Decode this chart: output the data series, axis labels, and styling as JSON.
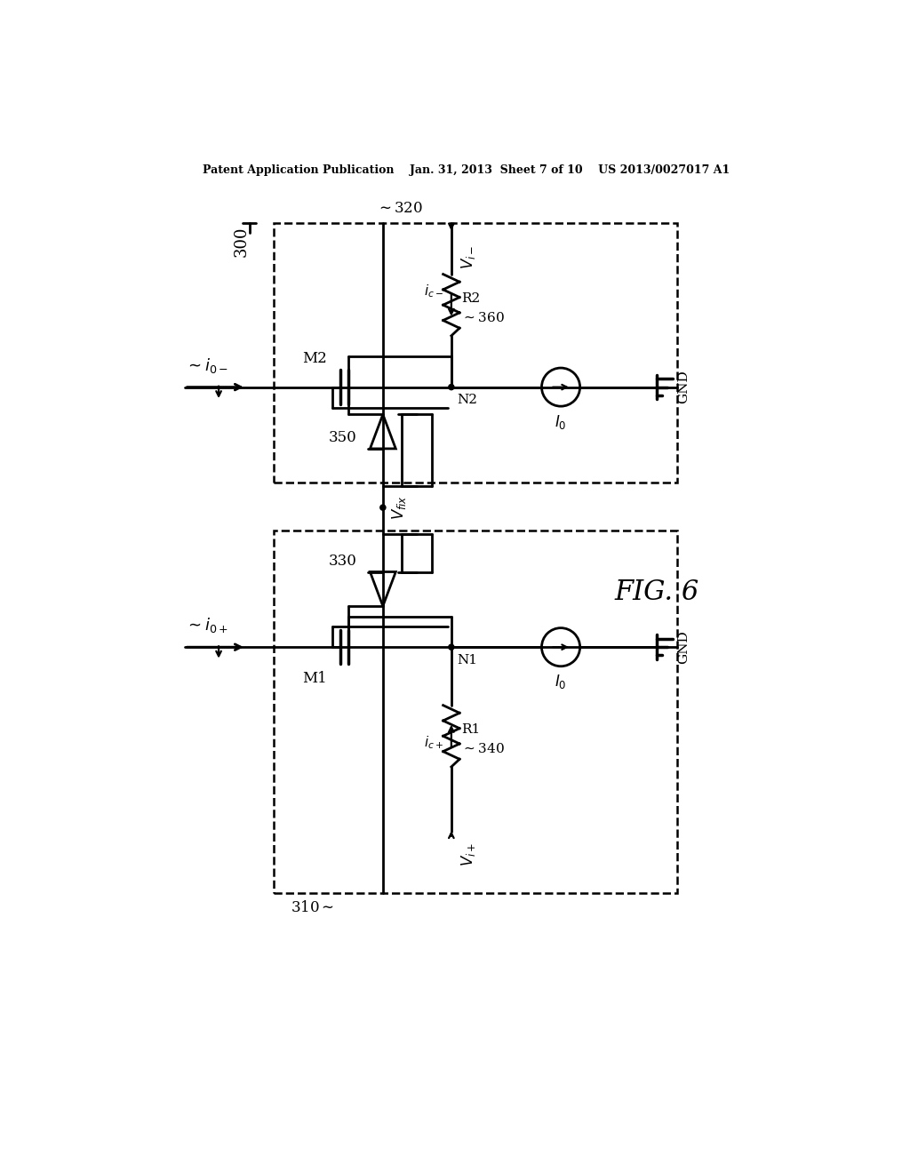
{
  "bg_color": "#ffffff",
  "line_color": "#000000",
  "header": "Patent Application Publication    Jan. 31, 2013  Sheet 7 of 10    US 2013/0027017 A1",
  "fig_label": "FIG. 6",
  "title_300": "300",
  "label_310": "310",
  "label_320": "320",
  "label_330": "330",
  "label_340": "340",
  "label_350": "350",
  "label_360": "360"
}
